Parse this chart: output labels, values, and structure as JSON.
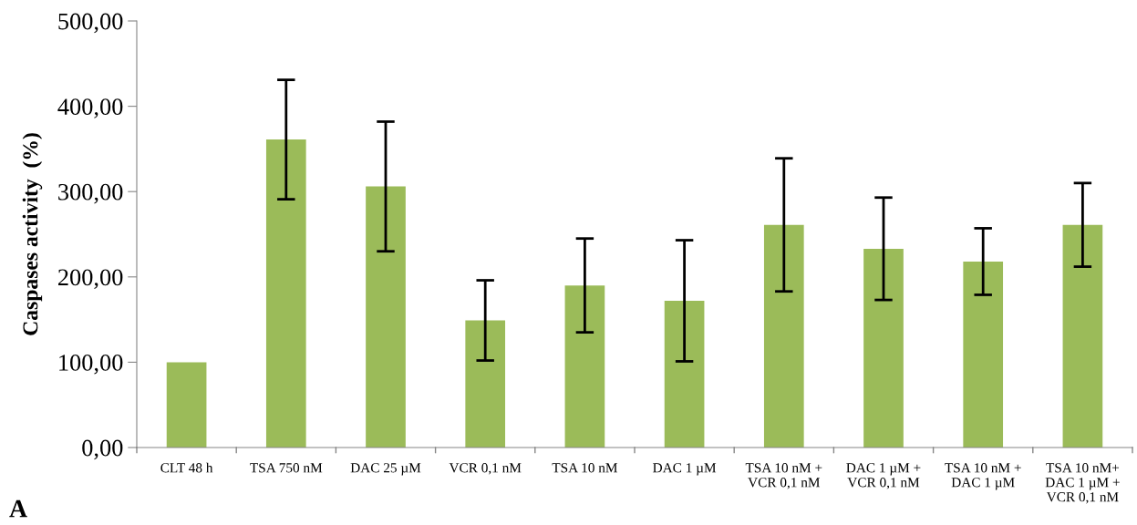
{
  "chart_data": {
    "type": "bar",
    "ylabel": "Caspases activity  (%)",
    "categories": [
      "CLT 48 h",
      "TSA 750 nM",
      "DAC 25 µM",
      "VCR 0,1 nM",
      "TSA 10 nM",
      "DAC 1 µM",
      "TSA 10 nM +\nVCR 0,1 nM",
      "DAC 1 µM +\nVCR 0,1 nM",
      "TSA 10 nM +\nDAC 1 µM",
      "TSA 10 nM+\nDAC 1 µM +\nVCR 0,1 nM"
    ],
    "values": [
      100,
      361,
      306,
      149,
      190,
      172,
      261,
      233,
      218,
      261
    ],
    "errors": [
      null,
      70,
      76,
      47,
      55,
      71,
      78,
      60,
      39,
      49
    ],
    "color": "#9bbb59",
    "ylim": [
      0,
      500
    ],
    "yticks": [
      {
        "value": 0,
        "label": "0,00"
      },
      {
        "value": 100,
        "label": "100,00"
      },
      {
        "value": 200,
        "label": "200,00"
      },
      {
        "value": 300,
        "label": "300,00"
      },
      {
        "value": 400,
        "label": "400,00"
      },
      {
        "value": 500,
        "label": "500,00"
      }
    ],
    "grid": false,
    "legend": false,
    "annotations": [
      "A"
    ]
  }
}
